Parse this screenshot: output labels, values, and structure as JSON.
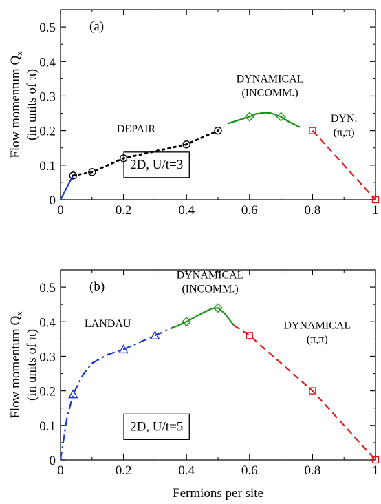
{
  "chart_data": [
    {
      "type": "line",
      "panel_label": "(a)",
      "ylabel": [
        "Flow momentum Q",
        "x",
        "(in units of π)"
      ],
      "xlim": [
        0,
        1
      ],
      "ylim": [
        0,
        0.55
      ],
      "xticks": [
        0,
        0.2,
        0.4,
        0.6,
        0.8,
        1
      ],
      "xtick_labels": [
        "0",
        "0.2",
        "0.4",
        "0.6",
        "0.8",
        "1"
      ],
      "yticks": [
        0,
        0.1,
        0.2,
        0.3,
        0.4,
        0.5
      ],
      "ytick_labels": [
        "0",
        "0.1",
        "0.2",
        "0.3",
        "0.4",
        "0.5"
      ],
      "annotations": [
        {
          "lines": [
            "DEPAIR"
          ],
          "at": [
            0.24,
            0.195
          ],
          "size": 16
        },
        {
          "lines": [
            "DYNAMICAL",
            "(INCOMM.)"
          ],
          "at": [
            0.665,
            0.34
          ],
          "size": 16
        },
        {
          "lines": [
            "DYN.",
            "(π,π)"
          ],
          "at": [
            0.9,
            0.225
          ],
          "size": 16
        }
      ],
      "boxed_label": {
        "text": "2D, U/t=3",
        "at": [
          0.305,
          0.09
        ]
      },
      "series": [
        {
          "style": "blue-solid",
          "color": "#1a35d8",
          "dash": "",
          "x": [
            0,
            0.04
          ],
          "y": [
            0,
            0.07
          ]
        },
        {
          "style": "black-dotted",
          "color": "#000000",
          "dash": "2.5,6",
          "x": [
            0.04,
            0.1,
            0.2,
            0.4,
            0.5
          ],
          "y": [
            0.07,
            0.08,
            0.12,
            0.16,
            0.2
          ]
        },
        {
          "style": "green-solid",
          "color": "#179317",
          "dash": "",
          "x": [
            0.53,
            0.6,
            0.62,
            0.65,
            0.67,
            0.7,
            0.72,
            0.76
          ],
          "y": [
            0.22,
            0.24,
            0.248,
            0.252,
            0.25,
            0.24,
            0.228,
            0.21
          ]
        },
        {
          "style": "red-dashed",
          "color": "#e01b1b",
          "dash": "10,6",
          "x": [
            0.8,
            1.0
          ],
          "y": [
            0.2,
            0
          ]
        }
      ],
      "markers": [
        {
          "shape": "circle",
          "color": "#000000",
          "x": [
            0.04,
            0.1,
            0.2,
            0.4,
            0.5
          ],
          "y": [
            0.07,
            0.08,
            0.12,
            0.16,
            0.2
          ]
        },
        {
          "shape": "diamond",
          "color": "#179317",
          "x": [
            0.6,
            0.7
          ],
          "y": [
            0.24,
            0.24
          ]
        },
        {
          "shape": "square",
          "color": "#e01b1b",
          "x": [
            0.8,
            1.0
          ],
          "y": [
            0.2,
            0
          ]
        }
      ]
    },
    {
      "type": "line",
      "panel_label": "(b)",
      "ylabel": [
        "Flow momentum Q",
        "x",
        "(in units of π)"
      ],
      "xlabel": "Fermions per site",
      "xlim": [
        0,
        1
      ],
      "ylim": [
        0,
        0.55
      ],
      "xticks": [
        0,
        0.2,
        0.4,
        0.6,
        0.8,
        1
      ],
      "xtick_labels": [
        "0",
        "0.2",
        "0.4",
        "0.6",
        "0.8",
        "1"
      ],
      "yticks": [
        0,
        0.1,
        0.2,
        0.3,
        0.4,
        0.5
      ],
      "ytick_labels": [
        "0",
        "0.1",
        "0.2",
        "0.3",
        "0.4",
        "0.5"
      ],
      "annotations": [
        {
          "lines": [
            "LANDAU"
          ],
          "at": [
            0.15,
            0.385
          ],
          "size": 16
        },
        {
          "lines": [
            "DYNAMICAL",
            "(INCOMM.)"
          ],
          "at": [
            0.475,
            0.525
          ],
          "size": 16
        },
        {
          "lines": [
            "DYNAMICAL",
            "(π,π)"
          ],
          "at": [
            0.815,
            0.38
          ],
          "size": 16
        }
      ],
      "boxed_label": {
        "text": "2D, U/t=5",
        "at": [
          0.305,
          0.085
        ]
      },
      "series": [
        {
          "style": "blue-dashdot",
          "color": "#1a35d8",
          "dash": "12,5,3,5",
          "x": [
            0,
            0.01,
            0.02,
            0.04,
            0.07,
            0.1,
            0.15,
            0.2,
            0.3,
            0.36
          ],
          "y": [
            0,
            0.06,
            0.12,
            0.19,
            0.245,
            0.28,
            0.305,
            0.32,
            0.36,
            0.385
          ]
        },
        {
          "style": "green-solid",
          "color": "#179317",
          "dash": "",
          "x": [
            0.35,
            0.4,
            0.45,
            0.48,
            0.5,
            0.52,
            0.55
          ],
          "y": [
            0.38,
            0.4,
            0.425,
            0.438,
            0.44,
            0.425,
            0.39
          ]
        },
        {
          "style": "red-dashed",
          "color": "#e01b1b",
          "dash": "10,6",
          "x": [
            0.55,
            0.6,
            0.8,
            1.0
          ],
          "y": [
            0.39,
            0.36,
            0.2,
            0
          ]
        }
      ],
      "markers": [
        {
          "shape": "triangle",
          "color": "#1a35d8",
          "x": [
            0.04,
            0.2,
            0.3
          ],
          "y": [
            0.19,
            0.32,
            0.36
          ]
        },
        {
          "shape": "diamond",
          "color": "#179317",
          "x": [
            0.4,
            0.5
          ],
          "y": [
            0.4,
            0.44
          ]
        },
        {
          "shape": "square",
          "color": "#e01b1b",
          "x": [
            0.6,
            0.8,
            1.0
          ],
          "y": [
            0.36,
            0.2,
            0
          ]
        }
      ]
    }
  ]
}
